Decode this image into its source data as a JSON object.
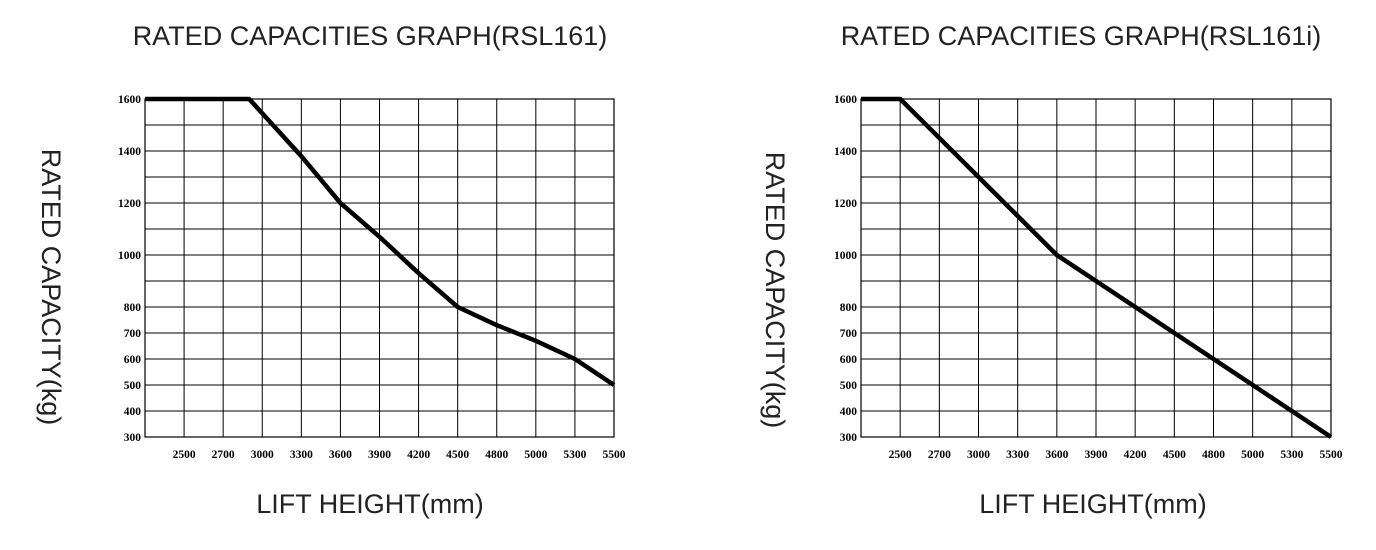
{
  "chart_data": [
    {
      "type": "line",
      "title": "RATED CAPACITIES GRAPH(RSL161)",
      "xlabel": "LIFT HEIGHT(mm)",
      "ylabel": "RATED CAPACITY(kg)",
      "x_ticks": [
        "2500",
        "2700",
        "3000",
        "3300",
        "3600",
        "3900",
        "4200",
        "4500",
        "4800",
        "5000",
        "5300",
        "5500"
      ],
      "y_ticks": [
        "300",
        "400",
        "500",
        "600",
        "700",
        "800",
        "1000",
        "1200",
        "1400",
        "1600"
      ],
      "grid": true,
      "series": [
        {
          "x": [
            "start",
            "2700",
            "2900",
            "3300",
            "3600",
            "3900",
            "4200",
            "4500",
            "4800",
            "5000",
            "5300",
            "5500"
          ],
          "y": [
            1600,
            1600,
            1600,
            1380,
            1200,
            1070,
            930,
            800,
            730,
            670,
            600,
            500
          ]
        }
      ]
    },
    {
      "type": "line",
      "title": "RATED CAPACITIES GRAPH(RSL161i)",
      "xlabel": "LIFT HEIGHT(mm)",
      "ylabel": "RATED CAPACITY(kg)",
      "x_ticks": [
        "2500",
        "2700",
        "3000",
        "3300",
        "3600",
        "3900",
        "4200",
        "4500",
        "4800",
        "5000",
        "5300",
        "5500"
      ],
      "y_ticks": [
        "300",
        "400",
        "500",
        "600",
        "700",
        "800",
        "1000",
        "1200",
        "1400",
        "1600"
      ],
      "grid": true,
      "series": [
        {
          "x": [
            "start",
            "2500",
            "3000",
            "3300",
            "3600",
            "3900",
            "4200",
            "4500",
            "4800",
            "5000",
            "5300",
            "5500"
          ],
          "y": [
            1600,
            1600,
            1300,
            1150,
            1000,
            900,
            800,
            700,
            600,
            500,
            400,
            300
          ]
        }
      ]
    }
  ]
}
